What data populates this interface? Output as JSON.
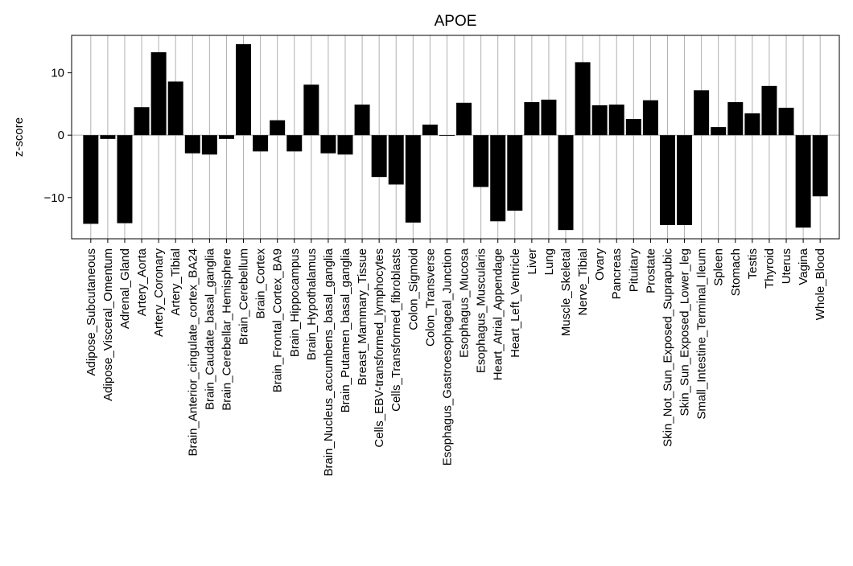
{
  "chart_data": {
    "type": "bar",
    "title": "APOE",
    "xlabel": "",
    "ylabel": "z-score",
    "ylim": [
      -16.6,
      16.0
    ],
    "yticks": [
      -10,
      0,
      10
    ],
    "ytick_labels": [
      "−10",
      "0",
      "10"
    ],
    "grid": "vertical",
    "zero_line": true,
    "bar_color": "#000000",
    "grid_color": "#b0b0b0",
    "categories": [
      "Adipose_Subcutaneous",
      "Adipose_Visceral_Omentum",
      "Adrenal_Gland",
      "Artery_Aorta",
      "Artery_Coronary",
      "Artery_Tibial",
      "Brain_Anterior_cingulate_cortex_BA24",
      "Brain_Caudate_basal_ganglia",
      "Brain_Cerebellar_Hemisphere",
      "Brain_Cerebellum",
      "Brain_Cortex",
      "Brain_Frontal_Cortex_BA9",
      "Brain_Hippocampus",
      "Brain_Hypothalamus",
      "Brain_Nucleus_accumbens_basal_ganglia",
      "Brain_Putamen_basal_ganglia",
      "Breast_Mammary_Tissue",
      "Cells_EBV-transformed_lymphocytes",
      "Cells_Transformed_fibroblasts",
      "Colon_Sigmoid",
      "Colon_Transverse",
      "Esophagus_Gastroesophageal_Junction",
      "Esophagus_Mucosa",
      "Esophagus_Muscularis",
      "Heart_Atrial_Appendage",
      "Heart_Left_Ventricle",
      "Liver",
      "Lung",
      "Muscle_Skeletal",
      "Nerve_Tibial",
      "Ovary",
      "Pancreas",
      "Pituitary",
      "Prostate",
      "Skin_Not_Sun_Exposed_Suprapubic",
      "Skin_Sun_Exposed_Lower_leg",
      "Small_Intestine_Terminal_Ileum",
      "Spleen",
      "Stomach",
      "Testis",
      "Thyroid",
      "Uterus",
      "Vagina",
      "Whole_Blood"
    ],
    "values": [
      -14.2,
      -0.6,
      -14.1,
      4.5,
      13.3,
      8.6,
      -2.9,
      -3.1,
      -0.6,
      14.6,
      -2.6,
      2.4,
      -2.6,
      8.1,
      -2.9,
      -3.1,
      4.9,
      -6.7,
      -7.9,
      -14.0,
      1.7,
      -0.1,
      5.2,
      -8.3,
      -13.8,
      -12.1,
      5.3,
      5.7,
      -15.2,
      11.7,
      4.8,
      4.9,
      2.6,
      5.6,
      -14.4,
      -14.4,
      7.2,
      1.3,
      5.3,
      3.5,
      7.9,
      4.4,
      -14.8,
      -9.8
    ]
  }
}
